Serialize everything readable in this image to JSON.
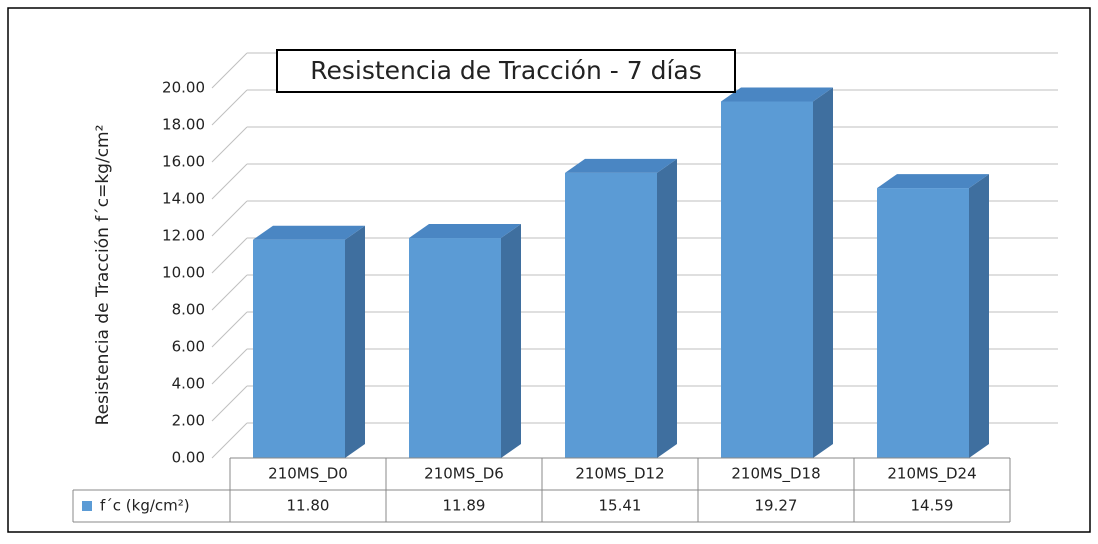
{
  "chart_data": {
    "type": "bar3d",
    "title": "Resistencia de Tracción - 7 días",
    "y_label": "Resistencia de Tracción  f´c=kg/cm²",
    "categories": [
      "210MS_D0",
      "210MS_D6",
      "210MS_D12",
      "210MS_D18",
      "210MS_D24"
    ],
    "series": [
      {
        "name": "f´c (kg/cm²)",
        "color": "#5b9bd5",
        "values": [
          11.8,
          11.89,
          15.41,
          19.27,
          14.59
        ],
        "value_labels": [
          "11.80",
          "11.89",
          "15.41",
          "19.27",
          "14.59"
        ]
      }
    ],
    "ylim": [
      0,
      20
    ],
    "yticks": [
      {
        "value": 0,
        "label": "0.00"
      },
      {
        "value": 2,
        "label": "2.00"
      },
      {
        "value": 4,
        "label": "4.00"
      },
      {
        "value": 6,
        "label": "6.00"
      },
      {
        "value": 8,
        "label": "8.00"
      },
      {
        "value": 10,
        "label": "10.00"
      },
      {
        "value": 12,
        "label": "12.00"
      },
      {
        "value": 14,
        "label": "14.00"
      },
      {
        "value": 16,
        "label": "16.00"
      },
      {
        "value": 18,
        "label": "18.00"
      },
      {
        "value": 20,
        "label": "20.00"
      }
    ],
    "grid": true,
    "legend": "table"
  }
}
